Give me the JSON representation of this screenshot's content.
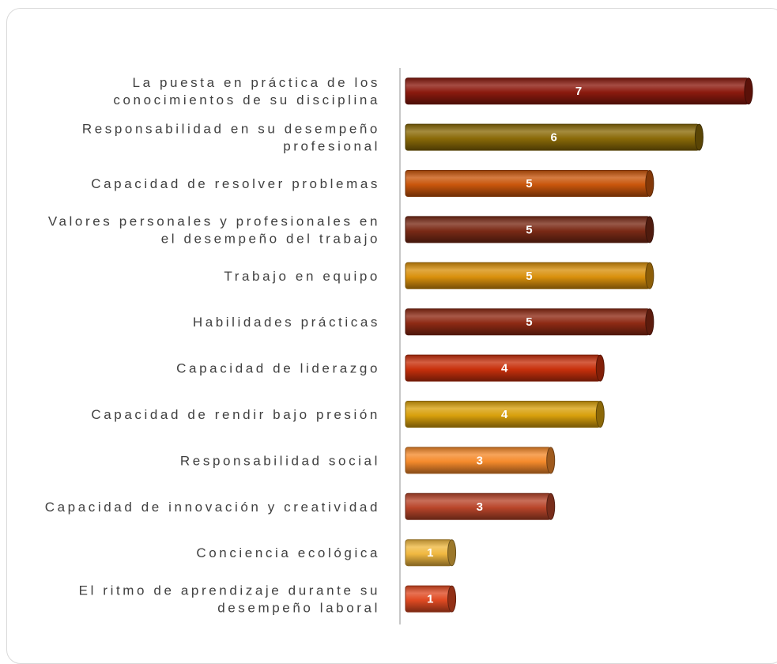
{
  "chart_data": {
    "type": "bar",
    "orientation": "horizontal",
    "categories": [
      [
        "La puesta en práctica de los",
        "conocimientos de su disciplina"
      ],
      [
        "Responsabilidad en su desempeño",
        "profesional"
      ],
      [
        "Capacidad de resolver problemas"
      ],
      [
        "Valores personales y profesionales en",
        "el desempeño del trabajo"
      ],
      [
        "Trabajo en equipo"
      ],
      [
        "Habilidades prácticas"
      ],
      [
        "Capacidad de liderazgo"
      ],
      [
        "Capacidad de rendir bajo presión"
      ],
      [
        "Responsabilidad social"
      ],
      [
        "Capacidad de innovación y creatividad"
      ],
      [
        "Conciencia ecológica"
      ],
      [
        "El ritmo de aprendizaje durante su",
        "desempeño laboral"
      ]
    ],
    "values": [
      7,
      6,
      5,
      5,
      5,
      5,
      4,
      4,
      3,
      3,
      1,
      1
    ],
    "xlim": [
      0,
      7
    ],
    "grid": false,
    "legend": "none",
    "bar_style": "cylinder",
    "colors": [
      "#8B1A0E",
      "#8A6A08",
      "#C9560C",
      "#7A2A16",
      "#D9900C",
      "#8E2A14",
      "#C8300C",
      "#D8A00C",
      "#F58A2C",
      "#B8452A",
      "#F0B840",
      "#E04A22"
    ]
  }
}
